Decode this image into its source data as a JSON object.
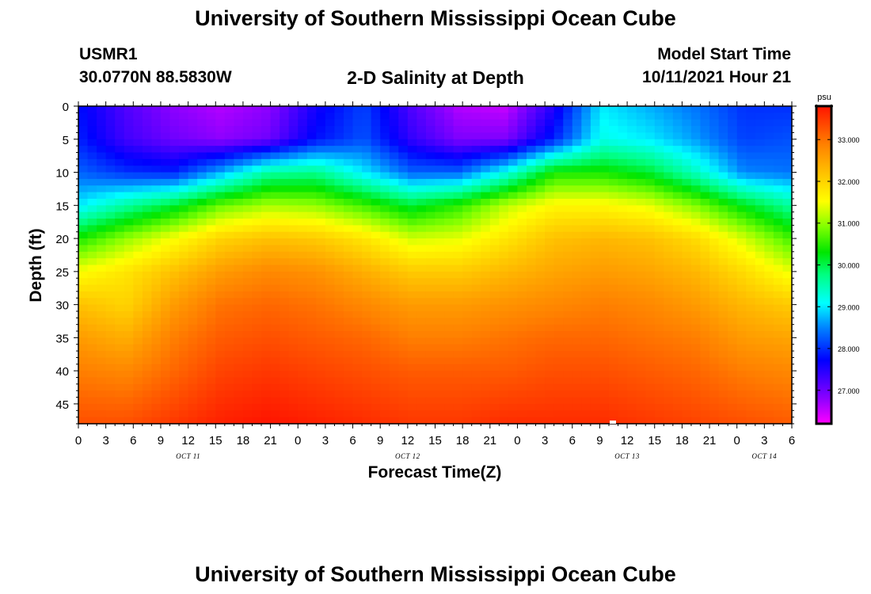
{
  "page": {
    "title_top": "University of Southern Mississippi Ocean Cube",
    "title_bottom": "University of Southern Mississippi Ocean Cube",
    "station_id": "USMR1",
    "station_coords": "30.0770N  88.5830W",
    "plot_title": "2-D Salinity at Depth",
    "model_start_label": "Model Start Time",
    "model_start_value": "10/11/2021 Hour 21"
  },
  "chart_data": {
    "type": "heatmap",
    "title": "2-D Salinity at Depth",
    "xlabel": "Forecast Time(Z)",
    "ylabel": "Depth (ft)",
    "x_hours_range": [
      0,
      78
    ],
    "x_tick_labels": [
      "0",
      "3",
      "6",
      "9",
      "12",
      "15",
      "18",
      "21",
      "0",
      "3",
      "6",
      "9",
      "12",
      "15",
      "18",
      "21",
      "0",
      "3",
      "6",
      "9",
      "12",
      "15",
      "18",
      "21",
      "0",
      "3",
      "6"
    ],
    "date_labels": [
      {
        "text": "OCT 11",
        "hour": 12
      },
      {
        "text": "OCT 12",
        "hour": 36
      },
      {
        "text": "OCT 13",
        "hour": 60
      },
      {
        "text": "OCT 14",
        "hour": 75
      }
    ],
    "y_range": [
      0,
      48
    ],
    "y_ticks": [
      0,
      5,
      10,
      15,
      20,
      25,
      30,
      35,
      40,
      45
    ],
    "colorbar": {
      "units": "psu",
      "range": [
        26.2,
        33.8
      ],
      "ticks": [
        27,
        28,
        29,
        30,
        31,
        32,
        33
      ],
      "tick_labels": [
        "27.000",
        "28.000",
        "29.000",
        "30.000",
        "31.000",
        "32.000",
        "33.000"
      ]
    },
    "series": [
      {
        "name": "Salinity 0 ft",
        "depth_ft": 0,
        "values": [
          27.8,
          27.2,
          26.8,
          26.6,
          26.8,
          27.6,
          28.1,
          27.2,
          26.6,
          26.5,
          27.5,
          29.0,
          28.7,
          28.4,
          28.0,
          28.0
        ]
      },
      {
        "name": "Salinity 5 ft",
        "depth_ft": 5,
        "values": [
          27.9,
          27.3,
          27.0,
          26.8,
          27.0,
          27.8,
          28.2,
          27.4,
          26.9,
          26.9,
          27.9,
          29.2,
          29.0,
          28.6,
          28.1,
          28.2
        ]
      },
      {
        "name": "Salinity 10 ft",
        "depth_ft": 10,
        "values": [
          28.3,
          28.0,
          27.9,
          28.7,
          29.6,
          29.7,
          29.0,
          28.3,
          28.3,
          29.2,
          30.4,
          30.4,
          30.1,
          29.4,
          28.5,
          28.4
        ]
      },
      {
        "name": "Salinity 15 ft",
        "depth_ft": 15,
        "values": [
          29.0,
          29.6,
          30.1,
          30.8,
          31.1,
          31.0,
          30.6,
          30.1,
          30.5,
          31.2,
          31.6,
          31.6,
          31.4,
          30.9,
          30.2,
          29.6
        ]
      },
      {
        "name": "Salinity 20 ft",
        "depth_ft": 20,
        "values": [
          30.4,
          31.0,
          31.5,
          32.0,
          32.2,
          32.1,
          31.8,
          31.3,
          31.4,
          31.8,
          32.2,
          32.3,
          32.2,
          31.9,
          31.3,
          30.6
        ]
      },
      {
        "name": "Salinity 25 ft",
        "depth_ft": 25,
        "values": [
          31.5,
          31.8,
          32.2,
          32.6,
          32.8,
          32.7,
          32.4,
          32.1,
          32.1,
          32.3,
          32.5,
          32.6,
          32.5,
          32.3,
          31.9,
          31.4
        ]
      },
      {
        "name": "Salinity 30 ft",
        "depth_ft": 30,
        "values": [
          32.2,
          32.0,
          32.6,
          33.0,
          33.1,
          33.0,
          32.8,
          32.6,
          32.6,
          32.7,
          32.8,
          32.9,
          32.8,
          32.6,
          32.3,
          32.1
        ]
      },
      {
        "name": "Salinity 35 ft",
        "depth_ft": 35,
        "values": [
          32.6,
          32.4,
          32.9,
          33.2,
          33.3,
          33.2,
          33.1,
          32.9,
          32.9,
          33.0,
          33.1,
          33.1,
          33.0,
          32.9,
          32.6,
          32.5
        ]
      },
      {
        "name": "Salinity 40 ft",
        "depth_ft": 40,
        "values": [
          32.9,
          32.8,
          33.1,
          33.4,
          33.5,
          33.4,
          33.3,
          33.2,
          33.2,
          33.2,
          33.3,
          33.3,
          33.2,
          33.1,
          32.9,
          32.8
        ]
      },
      {
        "name": "Salinity 48 ft",
        "depth_ft": 48,
        "values": [
          33.3,
          33.3,
          33.5,
          33.7,
          33.8,
          33.7,
          33.6,
          33.5,
          33.5,
          33.6,
          33.6,
          33.6,
          33.5,
          33.4,
          33.3,
          33.2
        ]
      }
    ],
    "series_x_hours": [
      0,
      5.2,
      10.4,
      15.6,
      20.8,
      26,
      31.2,
      36.4,
      41.6,
      46.8,
      52,
      57.2,
      62.4,
      67.6,
      72.8,
      78
    ]
  }
}
